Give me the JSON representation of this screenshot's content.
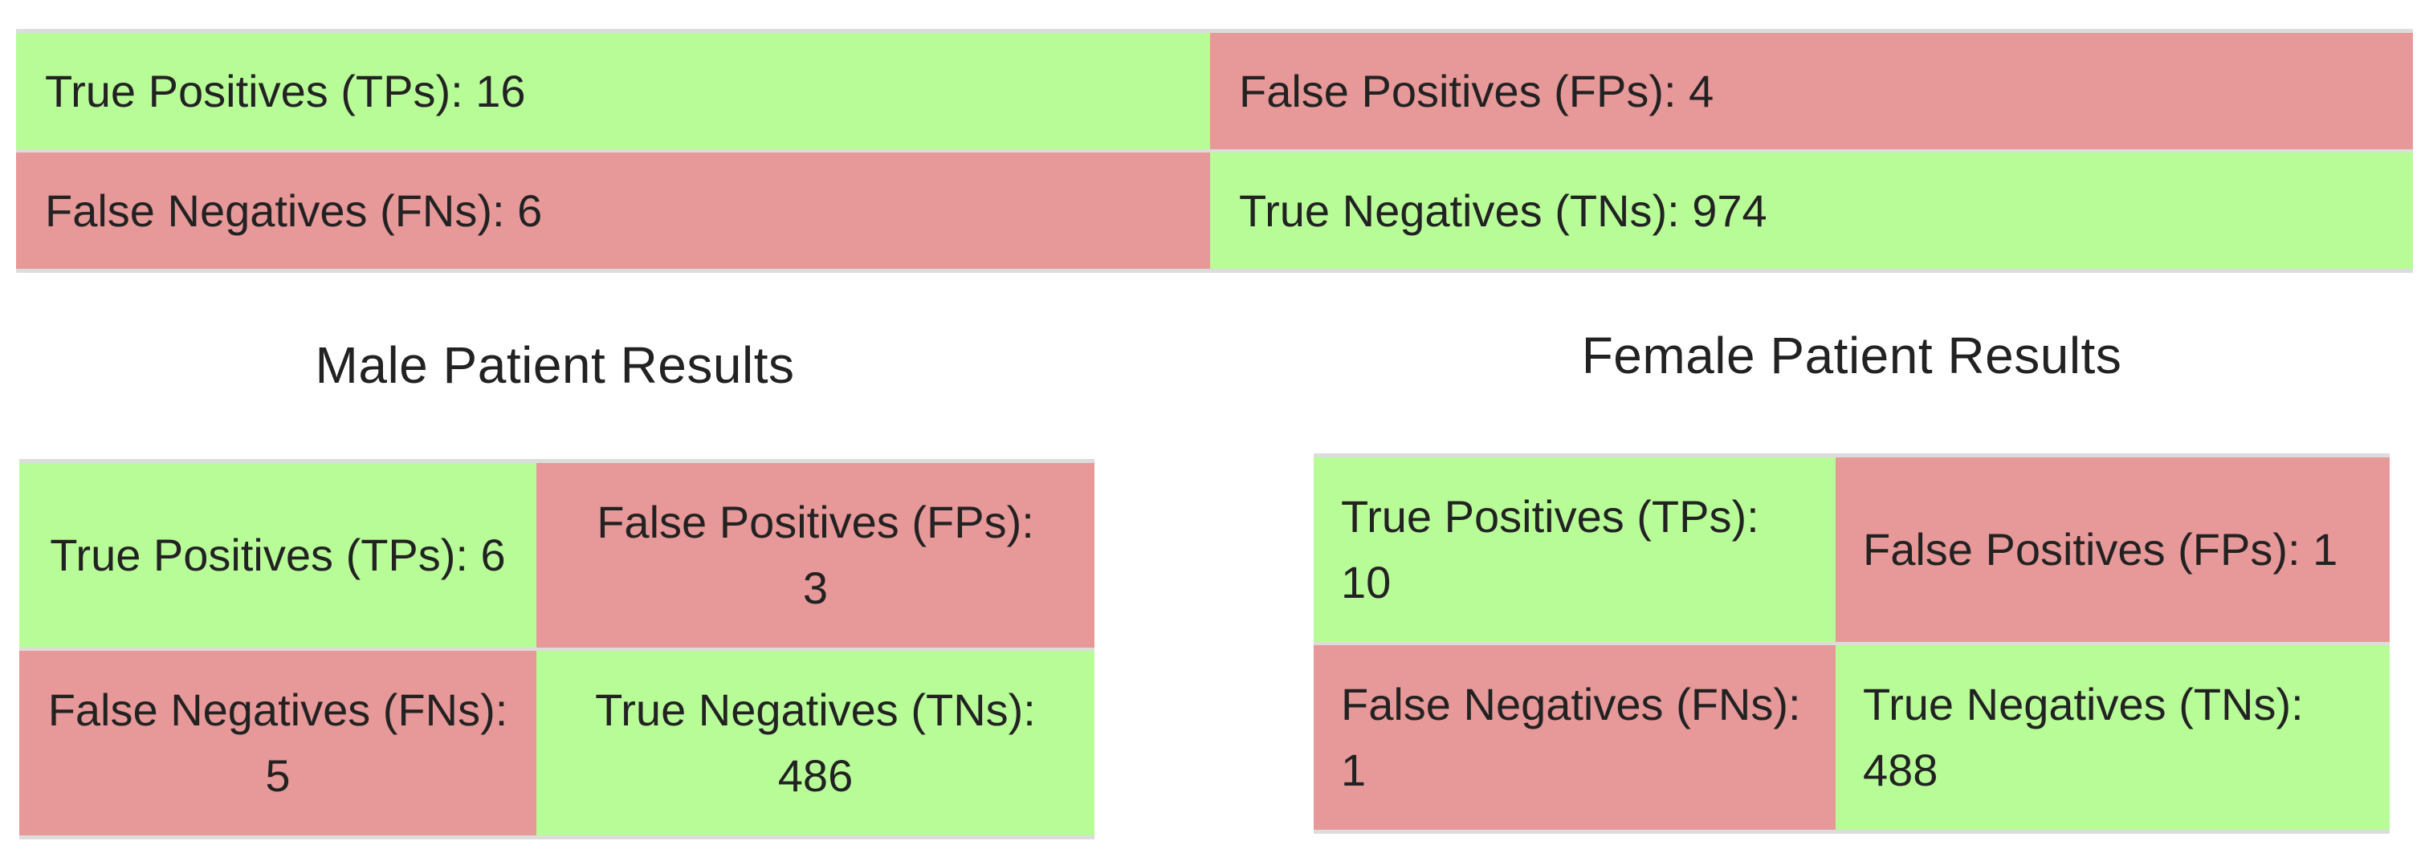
{
  "overall": {
    "tp": "True Positives (TPs): 16",
    "fp": "False Positives (FPs): 4",
    "fn": "False Negatives (FNs): 6",
    "tn": "True Negatives (TNs): 974"
  },
  "male": {
    "title": "Male Patient Results",
    "tp": "True Positives (TPs): 6",
    "fp": "False Positives (FPs): 3",
    "fn": "False Negatives (FNs): 5",
    "tn": "True Negatives (TNs): 486"
  },
  "female": {
    "title": "Female Patient Results",
    "tp": "True Positives (TPs): 10",
    "fp": "False Positives (FPs): 1",
    "fn": "False Negatives (FNs): 1",
    "tn": "True Negatives (TNs): 488"
  },
  "colors": {
    "correct": "#b8fc98",
    "error": "#e79898"
  }
}
